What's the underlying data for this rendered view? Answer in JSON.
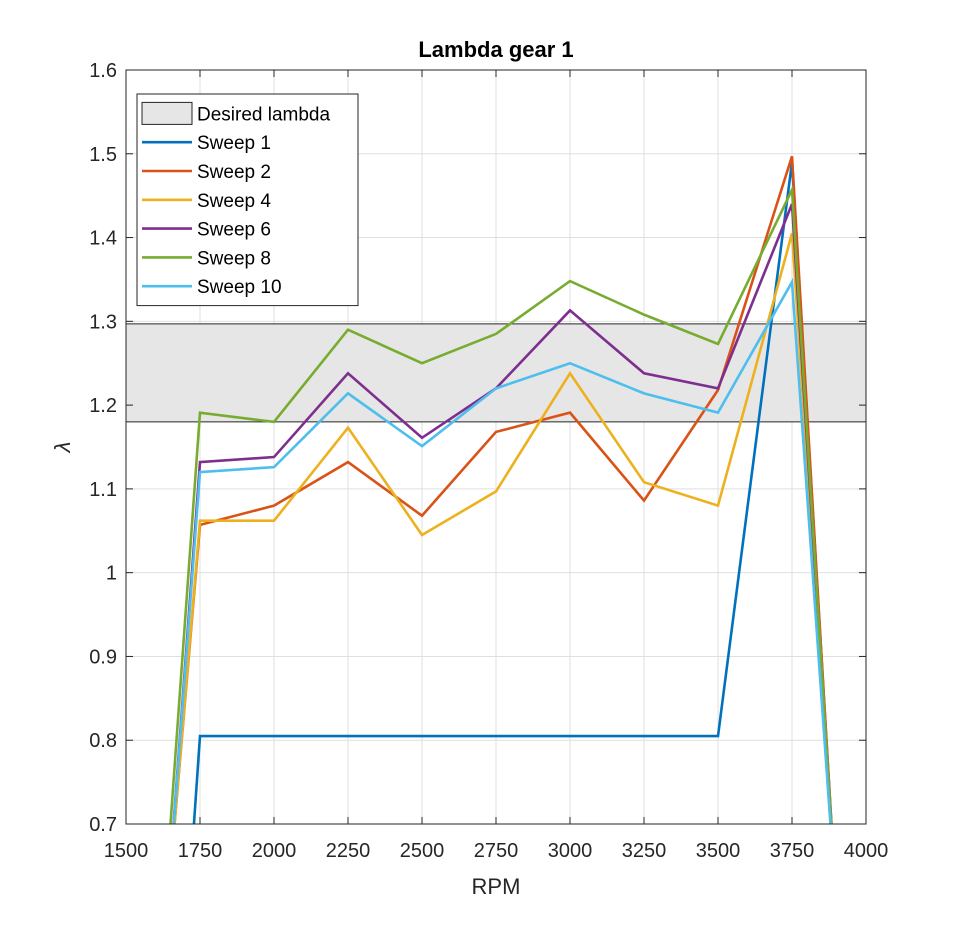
{
  "chart_data": {
    "type": "line",
    "title": "Lambda gear 1",
    "xlabel": "RPM",
    "ylabel": "λ",
    "xlim": [
      1500,
      4000
    ],
    "ylim": [
      0.7,
      1.6
    ],
    "xticks": [
      1500,
      1750,
      2000,
      2250,
      2500,
      2750,
      3000,
      3250,
      3500,
      3750,
      4000
    ],
    "yticks": [
      0.7,
      0.8,
      0.9,
      1,
      1.1,
      1.2,
      1.3,
      1.4,
      1.5,
      1.6
    ],
    "grid": true,
    "legend_placement": "top-left",
    "band": {
      "name": "Desired lambda",
      "y_min": 1.18,
      "y_max": 1.297,
      "color": "#e6e6e6"
    },
    "series": [
      {
        "name": "Sweep 1",
        "color": "#0072bd",
        "points": [
          [
            1710,
            0.6
          ],
          [
            1750,
            0.805
          ],
          [
            2000,
            0.805
          ],
          [
            2250,
            0.805
          ],
          [
            2500,
            0.805
          ],
          [
            2750,
            0.805
          ],
          [
            3000,
            0.805
          ],
          [
            3250,
            0.805
          ],
          [
            3500,
            0.805
          ],
          [
            3750,
            1.49
          ],
          [
            3900,
            0.6
          ]
        ]
      },
      {
        "name": "Sweep 2",
        "color": "#d95319",
        "points": [
          [
            1640,
            0.6
          ],
          [
            1750,
            1.057
          ],
          [
            2000,
            1.08
          ],
          [
            2250,
            1.132
          ],
          [
            2500,
            1.068
          ],
          [
            2750,
            1.168
          ],
          [
            3000,
            1.191
          ],
          [
            3250,
            1.086
          ],
          [
            3500,
            1.218
          ],
          [
            3750,
            1.497
          ],
          [
            3900,
            0.6
          ]
        ]
      },
      {
        "name": "Sweep 4",
        "color": "#edb120",
        "points": [
          [
            1640,
            0.6
          ],
          [
            1750,
            1.062
          ],
          [
            2000,
            1.062
          ],
          [
            2250,
            1.173
          ],
          [
            2500,
            1.045
          ],
          [
            2750,
            1.097
          ],
          [
            3000,
            1.238
          ],
          [
            3250,
            1.108
          ],
          [
            3500,
            1.08
          ],
          [
            3750,
            1.405
          ],
          [
            3900,
            0.6
          ]
        ]
      },
      {
        "name": "Sweep 6",
        "color": "#7e2f8e",
        "points": [
          [
            1640,
            0.6
          ],
          [
            1750,
            1.132
          ],
          [
            2000,
            1.138
          ],
          [
            2250,
            1.238
          ],
          [
            2500,
            1.161
          ],
          [
            2750,
            1.22
          ],
          [
            3000,
            1.313
          ],
          [
            3250,
            1.238
          ],
          [
            3500,
            1.22
          ],
          [
            3750,
            1.44
          ],
          [
            3900,
            0.6
          ]
        ]
      },
      {
        "name": "Sweep 8",
        "color": "#77ac30",
        "points": [
          [
            1630,
            0.6
          ],
          [
            1750,
            1.191
          ],
          [
            2000,
            1.18
          ],
          [
            2250,
            1.29
          ],
          [
            2500,
            1.25
          ],
          [
            2750,
            1.285
          ],
          [
            3000,
            1.348
          ],
          [
            3250,
            1.308
          ],
          [
            3500,
            1.273
          ],
          [
            3750,
            1.457
          ],
          [
            3900,
            0.6
          ]
        ]
      },
      {
        "name": "Sweep 10",
        "color": "#4dbeee",
        "points": [
          [
            1640,
            0.6
          ],
          [
            1750,
            1.12
          ],
          [
            2000,
            1.126
          ],
          [
            2250,
            1.214
          ],
          [
            2500,
            1.151
          ],
          [
            2750,
            1.22
          ],
          [
            3000,
            1.25
          ],
          [
            3250,
            1.214
          ],
          [
            3500,
            1.191
          ],
          [
            3750,
            1.347
          ],
          [
            3900,
            0.6
          ]
        ]
      }
    ]
  }
}
